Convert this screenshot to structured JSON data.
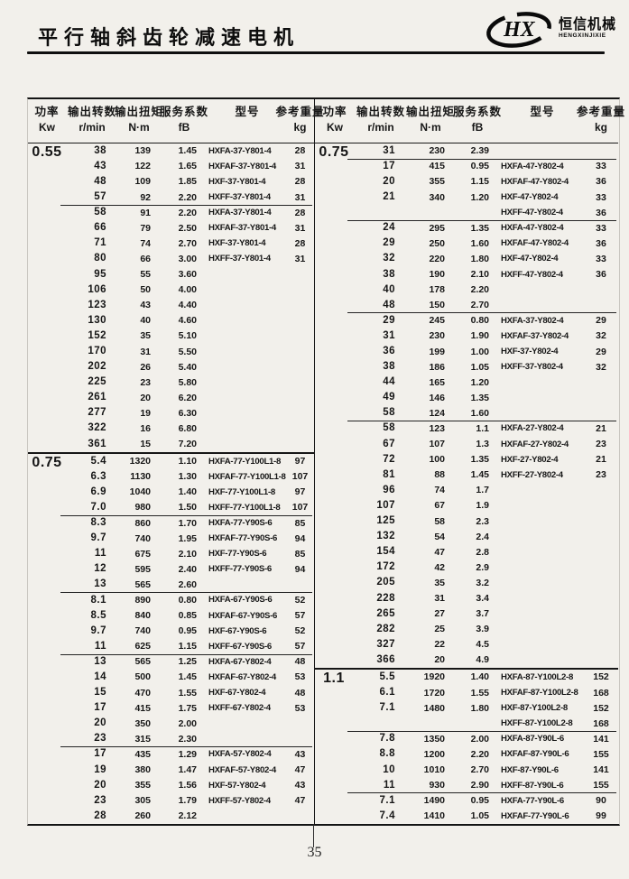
{
  "page": {
    "title": "平行轴斜齿轮减速电机",
    "page_number": "35",
    "logo": {
      "monogram": "HX",
      "name_zh": "恒信机械",
      "name_en": "HENGXINJIXIE"
    }
  },
  "columns": [
    {
      "zh": "功率",
      "unit": "Kw"
    },
    {
      "zh": "输出转数",
      "unit": "r/min"
    },
    {
      "zh": "输出扭矩",
      "unit": "N·m"
    },
    {
      "zh": "服务系数",
      "unit": "fB"
    },
    {
      "zh": "型号",
      "unit": ""
    },
    {
      "zh": "参考重量",
      "unit": "kg"
    }
  ],
  "tables": {
    "left": {
      "sections": [
        {
          "power": "0.55",
          "groups": [
            [
              [
                "38",
                "139",
                "1.45",
                "HXFA-37-Y801-4",
                "28"
              ],
              [
                "43",
                "122",
                "1.65",
                "HXFAF-37-Y801-4",
                "31"
              ],
              [
                "48",
                "109",
                "1.85",
                "HXF-37-Y801-4",
                "28"
              ],
              [
                "57",
                "92",
                "2.20",
                "HXFF-37-Y801-4",
                "31"
              ]
            ],
            [
              [
                "58",
                "91",
                "2.20",
                "HXFA-37-Y801-4",
                "28"
              ],
              [
                "66",
                "79",
                "2.50",
                "HXFAF-37-Y801-4",
                "31"
              ],
              [
                "71",
                "74",
                "2.70",
                "HXF-37-Y801-4",
                "28"
              ],
              [
                "80",
                "66",
                "3.00",
                "HXFF-37-Y801-4",
                "31"
              ],
              [
                "95",
                "55",
                "3.60",
                "",
                ""
              ],
              [
                "106",
                "50",
                "4.00",
                "",
                ""
              ],
              [
                "123",
                "43",
                "4.40",
                "",
                ""
              ],
              [
                "130",
                "40",
                "4.60",
                "",
                ""
              ],
              [
                "152",
                "35",
                "5.10",
                "",
                ""
              ],
              [
                "170",
                "31",
                "5.50",
                "",
                ""
              ],
              [
                "202",
                "26",
                "5.40",
                "",
                ""
              ],
              [
                "225",
                "23",
                "5.80",
                "",
                ""
              ],
              [
                "261",
                "20",
                "6.20",
                "",
                ""
              ],
              [
                "277",
                "19",
                "6.30",
                "",
                ""
              ],
              [
                "322",
                "16",
                "6.80",
                "",
                ""
              ],
              [
                "361",
                "15",
                "7.20",
                "",
                ""
              ]
            ]
          ]
        },
        {
          "power": "0.75",
          "groups": [
            [
              [
                "5.4",
                "1320",
                "1.10",
                "HXFA-77-Y100L1-8",
                "97"
              ],
              [
                "6.3",
                "1130",
                "1.30",
                "HXFAF-77-Y100L1-8",
                "107"
              ],
              [
                "6.9",
                "1040",
                "1.40",
                "HXF-77-Y100L1-8",
                "97"
              ],
              [
                "7.0",
                "980",
                "1.50",
                "HXFF-77-Y100L1-8",
                "107"
              ]
            ],
            [
              [
                "8.3",
                "860",
                "1.70",
                "HXFA-77-Y90S-6",
                "85"
              ],
              [
                "9.7",
                "740",
                "1.95",
                "HXFAF-77-Y90S-6",
                "94"
              ],
              [
                "11",
                "675",
                "2.10",
                "HXF-77-Y90S-6",
                "85"
              ],
              [
                "12",
                "595",
                "2.40",
                "HXFF-77-Y90S-6",
                "94"
              ],
              [
                "13",
                "565",
                "2.60",
                "",
                ""
              ]
            ],
            [
              [
                "8.1",
                "890",
                "0.80",
                "HXFA-67-Y90S-6",
                "52"
              ],
              [
                "8.5",
                "840",
                "0.85",
                "HXFAF-67-Y90S-6",
                "57"
              ],
              [
                "9.7",
                "740",
                "0.95",
                "HXF-67-Y90S-6",
                "52"
              ],
              [
                "11",
                "625",
                "1.15",
                "HXFF-67-Y90S-6",
                "57"
              ]
            ],
            [
              [
                "13",
                "565",
                "1.25",
                "HXFA-67-Y802-4",
                "48"
              ],
              [
                "14",
                "500",
                "1.45",
                "HXFAF-67-Y802-4",
                "53"
              ],
              [
                "15",
                "470",
                "1.55",
                "HXF-67-Y802-4",
                "48"
              ],
              [
                "17",
                "415",
                "1.75",
                "HXFF-67-Y802-4",
                "53"
              ],
              [
                "20",
                "350",
                "2.00",
                "",
                ""
              ],
              [
                "23",
                "315",
                "2.30",
                "",
                ""
              ]
            ],
            [
              [
                "17",
                "435",
                "1.29",
                "HXFA-57-Y802-4",
                "43"
              ],
              [
                "19",
                "380",
                "1.47",
                "HXFAF-57-Y802-4",
                "47"
              ],
              [
                "20",
                "355",
                "1.56",
                "HXF-57-Y802-4",
                "43"
              ],
              [
                "23",
                "305",
                "1.79",
                "HXFF-57-Y802-4",
                "47"
              ],
              [
                "28",
                "260",
                "2.12",
                "",
                ""
              ]
            ]
          ]
        }
      ]
    },
    "right": {
      "sections": [
        {
          "power": "0.75",
          "groups": [
            [
              [
                "31",
                "230",
                "2.39",
                "",
                ""
              ]
            ],
            [
              [
                "17",
                "415",
                "0.95",
                "HXFA-47-Y802-4",
                "33"
              ],
              [
                "20",
                "355",
                "1.15",
                "HXFAF-47-Y802-4",
                "36"
              ],
              [
                "21",
                "340",
                "1.20",
                "HXF-47-Y802-4",
                "33"
              ],
              [
                "",
                "",
                "",
                "HXFF-47-Y802-4",
                "36"
              ]
            ],
            [
              [
                "24",
                "295",
                "1.35",
                "HXFA-47-Y802-4",
                "33"
              ],
              [
                "29",
                "250",
                "1.60",
                "HXFAF-47-Y802-4",
                "36"
              ],
              [
                "32",
                "220",
                "1.80",
                "HXF-47-Y802-4",
                "33"
              ],
              [
                "38",
                "190",
                "2.10",
                "HXFF-47-Y802-4",
                "36"
              ],
              [
                "40",
                "178",
                "2.20",
                "",
                ""
              ],
              [
                "48",
                "150",
                "2.70",
                "",
                ""
              ]
            ],
            [
              [
                "29",
                "245",
                "0.80",
                "HXFA-37-Y802-4",
                "29"
              ],
              [
                "31",
                "230",
                "1.90",
                "HXFAF-37-Y802-4",
                "32"
              ],
              [
                "36",
                "199",
                "1.00",
                "HXF-37-Y802-4",
                "29"
              ],
              [
                "38",
                "186",
                "1.05",
                "HXFF-37-Y802-4",
                "32"
              ],
              [
                "44",
                "165",
                "1.20",
                "",
                ""
              ],
              [
                "49",
                "146",
                "1.35",
                "",
                ""
              ],
              [
                "58",
                "124",
                "1.60",
                "",
                ""
              ]
            ],
            [
              [
                "58",
                "123",
                "1.1",
                "HXFA-27-Y802-4",
                "21"
              ],
              [
                "67",
                "107",
                "1.3",
                "HXFAF-27-Y802-4",
                "23"
              ],
              [
                "72",
                "100",
                "1.35",
                "HXF-27-Y802-4",
                "21"
              ],
              [
                "81",
                "88",
                "1.45",
                "HXFF-27-Y802-4",
                "23"
              ],
              [
                "96",
                "74",
                "1.7",
                "",
                ""
              ],
              [
                "107",
                "67",
                "1.9",
                "",
                ""
              ],
              [
                "125",
                "58",
                "2.3",
                "",
                ""
              ],
              [
                "132",
                "54",
                "2.4",
                "",
                ""
              ],
              [
                "154",
                "47",
                "2.8",
                "",
                ""
              ],
              [
                "172",
                "42",
                "2.9",
                "",
                ""
              ],
              [
                "205",
                "35",
                "3.2",
                "",
                ""
              ],
              [
                "228",
                "31",
                "3.4",
                "",
                ""
              ],
              [
                "265",
                "27",
                "3.7",
                "",
                ""
              ],
              [
                "282",
                "25",
                "3.9",
                "",
                ""
              ],
              [
                "327",
                "22",
                "4.5",
                "",
                ""
              ],
              [
                "366",
                "20",
                "4.9",
                "",
                ""
              ]
            ]
          ]
        },
        {
          "power": "1.1",
          "groups": [
            [
              [
                "5.5",
                "1920",
                "1.40",
                "HXFA-87-Y100L2-8",
                "152"
              ],
              [
                "6.1",
                "1720",
                "1.55",
                "HXFAF-87-Y100L2-8",
                "168"
              ],
              [
                "7.1",
                "1480",
                "1.80",
                "HXF-87-Y100L2-8",
                "152"
              ],
              [
                "",
                "",
                "",
                "HXFF-87-Y100L2-8",
                "168"
              ]
            ],
            [
              [
                "7.8",
                "1350",
                "2.00",
                "HXFA-87-Y90L-6",
                "141"
              ],
              [
                "8.8",
                "1200",
                "2.20",
                "HXFAF-87-Y90L-6",
                "155"
              ],
              [
                "10",
                "1010",
                "2.70",
                "HXF-87-Y90L-6",
                "141"
              ],
              [
                "11",
                "930",
                "2.90",
                "HXFF-87-Y90L-6",
                "155"
              ]
            ],
            [
              [
                "7.1",
                "1490",
                "0.95",
                "HXFA-77-Y90L-6",
                "90"
              ],
              [
                "7.4",
                "1410",
                "1.05",
                "HXFAF-77-Y90L-6",
                "99"
              ]
            ]
          ]
        }
      ]
    }
  }
}
